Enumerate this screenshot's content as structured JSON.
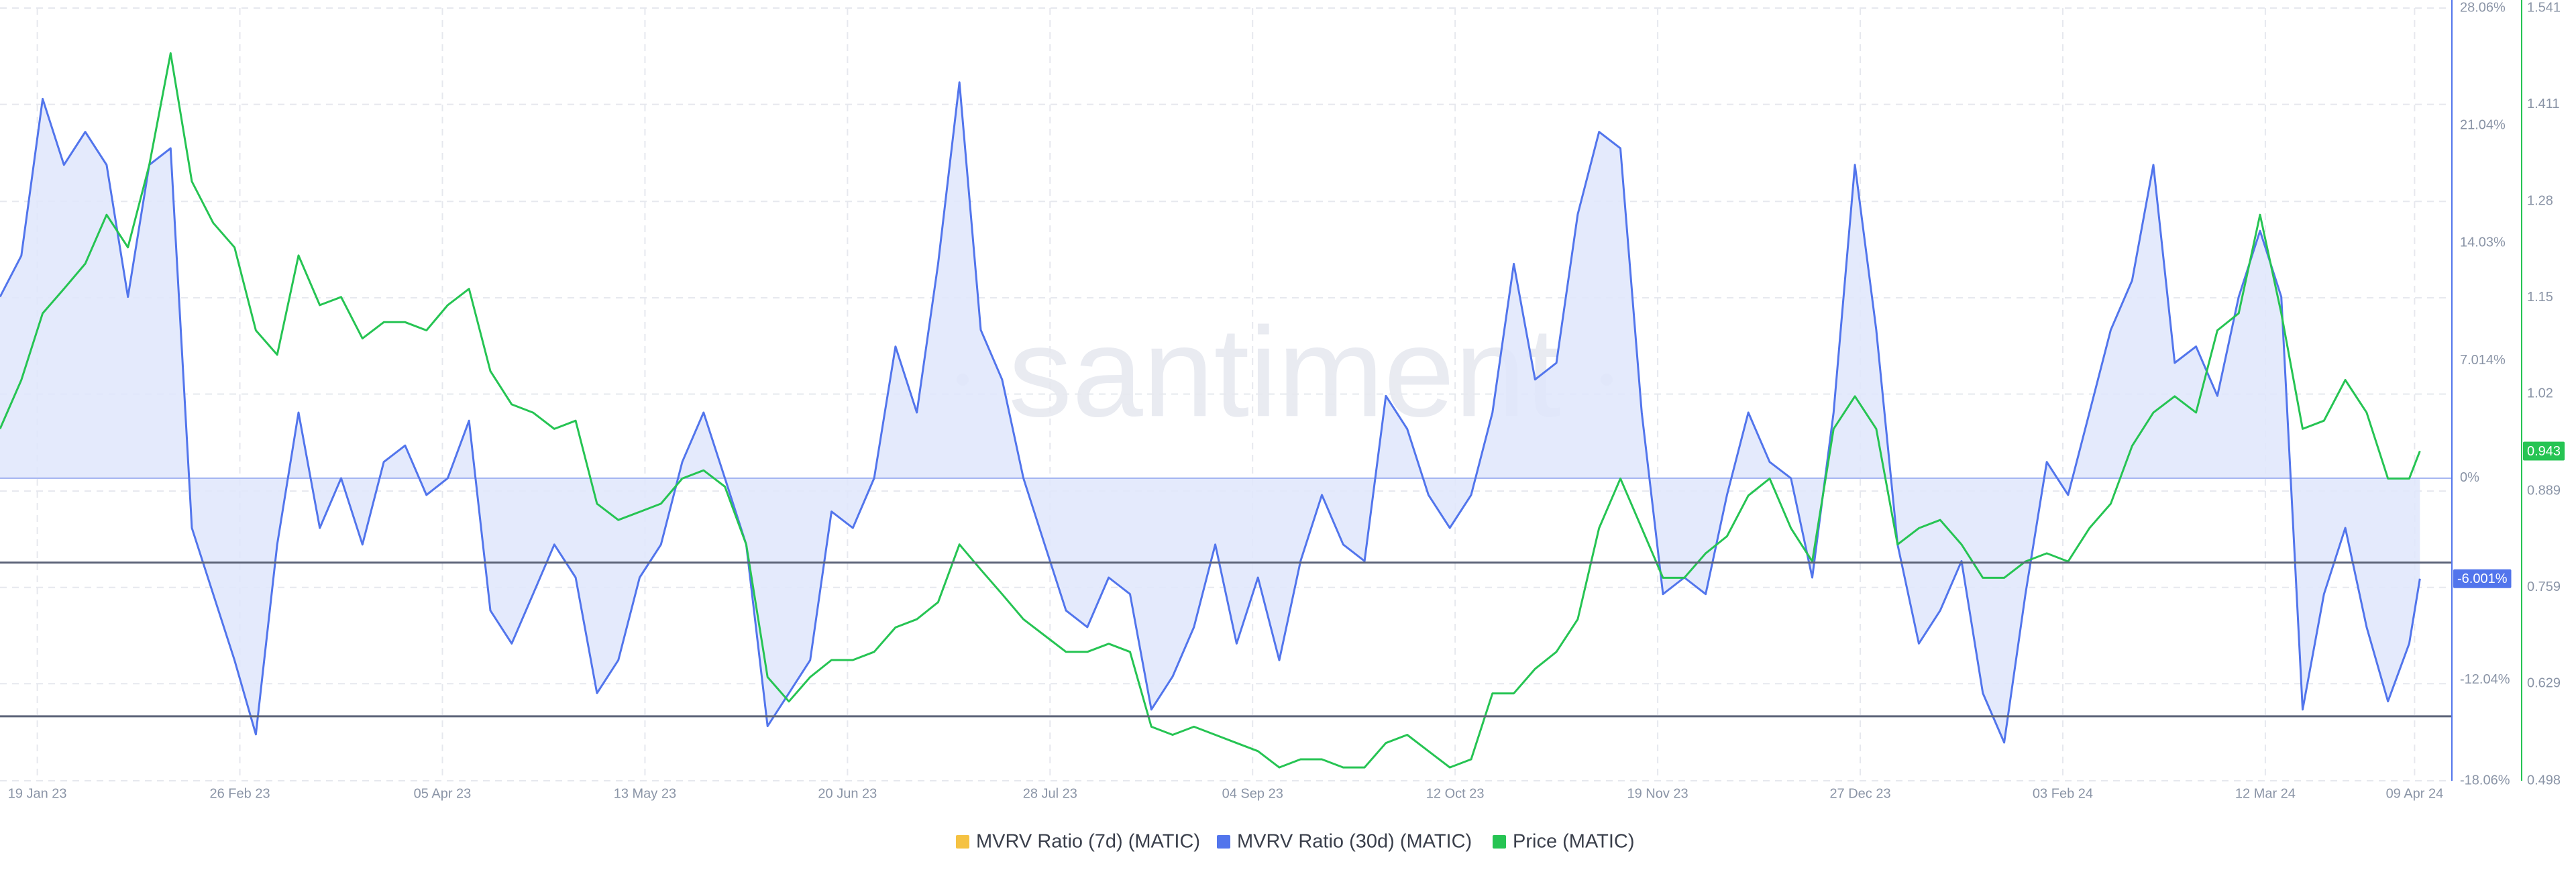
{
  "chart_data": {
    "type": "line",
    "watermark": "santiment",
    "x": [
      "2023-01-12",
      "2023-01-16",
      "2023-01-20",
      "2023-01-24",
      "2023-01-28",
      "2023-02-01",
      "2023-02-05",
      "2023-02-09",
      "2023-02-13",
      "2023-02-17",
      "2023-02-21",
      "2023-02-25",
      "2023-03-01",
      "2023-03-05",
      "2023-03-09",
      "2023-03-13",
      "2023-03-17",
      "2023-03-21",
      "2023-03-25",
      "2023-03-29",
      "2023-04-02",
      "2023-04-06",
      "2023-04-10",
      "2023-04-14",
      "2023-04-18",
      "2023-04-22",
      "2023-04-26",
      "2023-04-30",
      "2023-05-04",
      "2023-05-08",
      "2023-05-12",
      "2023-05-16",
      "2023-05-20",
      "2023-05-24",
      "2023-05-28",
      "2023-06-01",
      "2023-06-05",
      "2023-06-09",
      "2023-06-13",
      "2023-06-17",
      "2023-06-21",
      "2023-06-25",
      "2023-06-29",
      "2023-07-03",
      "2023-07-07",
      "2023-07-11",
      "2023-07-15",
      "2023-07-19",
      "2023-07-23",
      "2023-07-27",
      "2023-07-31",
      "2023-08-04",
      "2023-08-08",
      "2023-08-12",
      "2023-08-16",
      "2023-08-20",
      "2023-08-24",
      "2023-08-28",
      "2023-09-01",
      "2023-09-05",
      "2023-09-09",
      "2023-09-13",
      "2023-09-17",
      "2023-09-21",
      "2023-09-25",
      "2023-09-29",
      "2023-10-03",
      "2023-10-07",
      "2023-10-11",
      "2023-10-15",
      "2023-10-19",
      "2023-10-23",
      "2023-10-27",
      "2023-10-31",
      "2023-11-04",
      "2023-11-08",
      "2023-11-12",
      "2023-11-16",
      "2023-11-20",
      "2023-11-24",
      "2023-11-28",
      "2023-12-02",
      "2023-12-06",
      "2023-12-10",
      "2023-12-14",
      "2023-12-18",
      "2023-12-22",
      "2023-12-26",
      "2023-12-30",
      "2024-01-03",
      "2024-01-07",
      "2024-01-11",
      "2024-01-15",
      "2024-01-19",
      "2024-01-23",
      "2024-01-27",
      "2024-01-31",
      "2024-02-04",
      "2024-02-08",
      "2024-02-12",
      "2024-02-16",
      "2024-02-20",
      "2024-02-24",
      "2024-02-28",
      "2024-03-03",
      "2024-03-07",
      "2024-03-11",
      "2024-03-15",
      "2024-03-19",
      "2024-03-23",
      "2024-03-27",
      "2024-03-31",
      "2024-04-04",
      "2024-04-08",
      "2024-04-10"
    ],
    "xlim": [
      "2023-01-12",
      "2024-04-16"
    ],
    "xticks": [
      {
        "value": "2023-01-19",
        "label": "19 Jan 23"
      },
      {
        "value": "2023-02-26",
        "label": "26 Feb 23"
      },
      {
        "value": "2023-04-05",
        "label": "05 Apr 23"
      },
      {
        "value": "2023-05-13",
        "label": "13 May 23"
      },
      {
        "value": "2023-06-20",
        "label": "20 Jun 23"
      },
      {
        "value": "2023-07-28",
        "label": "28 Jul 23"
      },
      {
        "value": "2023-09-04",
        "label": "04 Sep 23"
      },
      {
        "value": "2023-10-12",
        "label": "12 Oct 23"
      },
      {
        "value": "2023-11-19",
        "label": "19 Nov 23"
      },
      {
        "value": "2023-12-27",
        "label": "27 Dec 23"
      },
      {
        "value": "2024-02-03",
        "label": "03 Feb 24"
      },
      {
        "value": "2024-03-12",
        "label": "12 Mar 24"
      },
      {
        "value": "2024-04-09",
        "label": "09 Apr 24"
      }
    ],
    "ylim": [
      -18.06,
      28.06
    ],
    "yticks": [
      {
        "value": 28.06,
        "label": "28.06%"
      },
      {
        "value": 21.04,
        "label": "21.04%"
      },
      {
        "value": 14.03,
        "label": "14.03%"
      },
      {
        "value": 7.014,
        "label": "7.014%"
      },
      {
        "value": 0,
        "label": "0%"
      },
      {
        "value": -12.04,
        "label": "-12.04%"
      },
      {
        "value": -18.06,
        "label": "-18.06%"
      }
    ],
    "y2lim": [
      0.498,
      1.541
    ],
    "y2ticks": [
      1.541,
      1.411,
      1.28,
      1.15,
      1.02,
      0.889,
      0.759,
      0.629,
      0.498
    ],
    "grid": true,
    "hlines": [
      -5.04,
      -14.21
    ],
    "series": [
      {
        "name": "MVRV Ratio (7d) (MATIC)",
        "color": "#f5c242"
      },
      {
        "name": "MVRV Ratio (30d) (MATIC)",
        "color": "#5275ec",
        "fill": "#dfe6fb",
        "axis": "y",
        "values": [
          10.82,
          13.28,
          22.64,
          18.7,
          20.67,
          18.7,
          10.82,
          18.7,
          19.69,
          -2.97,
          -6.92,
          -10.86,
          -15.29,
          -3.96,
          3.92,
          -2.97,
          0.0,
          -3.96,
          0.97,
          1.95,
          -1.0,
          0.0,
          3.43,
          -7.9,
          -9.87,
          -6.92,
          -3.96,
          -5.93,
          -12.83,
          -10.86,
          -5.93,
          -3.96,
          0.97,
          3.92,
          0.0,
          -3.96,
          -14.8,
          -12.83,
          -10.86,
          -1.99,
          -2.97,
          0.0,
          7.86,
          3.92,
          12.79,
          23.63,
          8.85,
          5.89,
          0.0,
          -3.96,
          -7.9,
          -8.89,
          -5.93,
          -6.92,
          -13.81,
          -11.84,
          -8.89,
          -3.96,
          -9.87,
          -5.93,
          -10.86,
          -4.95,
          -1.0,
          -3.96,
          -4.95,
          4.91,
          2.94,
          -1.0,
          -2.97,
          -1.0,
          3.92,
          12.79,
          5.89,
          6.88,
          15.75,
          20.67,
          19.69,
          3.92,
          -6.92,
          -5.93,
          -6.92,
          -1.0,
          3.92,
          0.97,
          0.0,
          -5.93,
          3.92,
          18.7,
          8.85,
          -3.96,
          -9.87,
          -7.9,
          -4.95,
          -12.83,
          -15.78,
          -6.92,
          0.97,
          -1.0,
          3.92,
          8.85,
          11.8,
          18.7,
          6.88,
          7.86,
          4.91,
          10.82,
          14.76,
          10.82,
          -13.81,
          -6.92,
          -2.97,
          -8.89,
          -13.32,
          -9.87,
          -6.001
        ],
        "current": {
          "value": -6.001,
          "label": "-6.001%"
        }
      },
      {
        "name": "Price (MATIC)",
        "color": "#26c453",
        "axis": "y2",
        "values": [
          0.973,
          1.039,
          1.129,
          1.162,
          1.196,
          1.262,
          1.218,
          1.329,
          1.48,
          1.307,
          1.251,
          1.218,
          1.106,
          1.073,
          1.207,
          1.14,
          1.151,
          1.095,
          1.117,
          1.117,
          1.106,
          1.14,
          1.162,
          1.051,
          1.006,
          0.995,
          0.973,
          0.984,
          0.872,
          0.85,
          0.861,
          0.872,
          0.906,
          0.917,
          0.895,
          0.817,
          0.638,
          0.605,
          0.638,
          0.661,
          0.661,
          0.672,
          0.705,
          0.716,
          0.739,
          0.817,
          0.783,
          0.75,
          0.716,
          0.694,
          0.672,
          0.672,
          0.683,
          0.672,
          0.571,
          0.56,
          0.571,
          0.56,
          0.549,
          0.538,
          0.516,
          0.527,
          0.527,
          0.516,
          0.516,
          0.549,
          0.56,
          0.538,
          0.516,
          0.527,
          0.616,
          0.616,
          0.649,
          0.672,
          0.716,
          0.839,
          0.906,
          0.839,
          0.772,
          0.772,
          0.805,
          0.828,
          0.883,
          0.906,
          0.839,
          0.794,
          0.973,
          1.017,
          0.973,
          0.817,
          0.839,
          0.85,
          0.817,
          0.772,
          0.772,
          0.794,
          0.805,
          0.794,
          0.839,
          0.872,
          0.95,
          0.995,
          1.017,
          0.995,
          1.106,
          1.129,
          1.262,
          1.129,
          0.973,
          0.984,
          1.039,
          0.995,
          0.906,
          0.906,
          0.943
        ],
        "current": {
          "value": 0.943,
          "label": "0.943"
        }
      }
    ]
  }
}
